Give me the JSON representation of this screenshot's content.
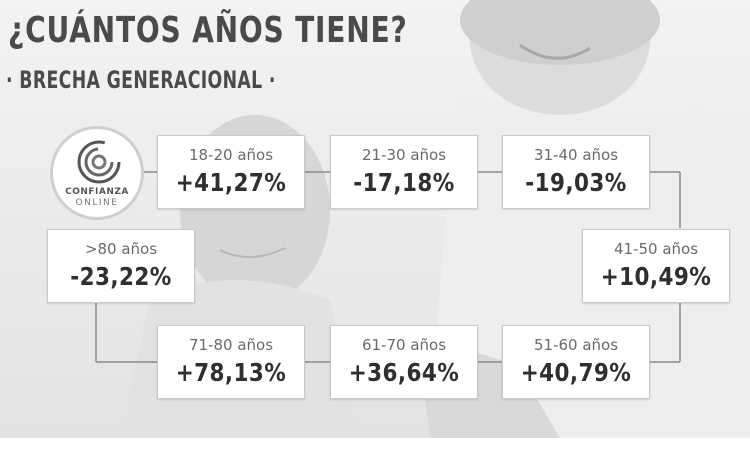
{
  "header": {
    "title": "¿CUÁNTOS AÑOS TIENE?",
    "subtitle": "· BRECHA GENERACIONAL ·"
  },
  "logo": {
    "line1": "CONFIANZA",
    "line2": "ONLINE"
  },
  "groups": [
    {
      "age": "18-20 años",
      "value": "+41,27%"
    },
    {
      "age": "21-30 años",
      "value": "-17,18%"
    },
    {
      "age": "31-40 años",
      "value": "-19,03%"
    },
    {
      "age": "41-50 años",
      "value": "+10,49%"
    },
    {
      "age": "51-60 años",
      "value": "+40,79%"
    },
    {
      "age": "61-70 años",
      "value": "+36,64%"
    },
    {
      "age": "71-80 años",
      "value": "+78,13%"
    },
    {
      "age": ">80 años",
      "value": "-23,22%"
    }
  ],
  "colors": {
    "text": "#2f2f2f",
    "card": "#ffffff",
    "connector": "#8a8a8a"
  }
}
